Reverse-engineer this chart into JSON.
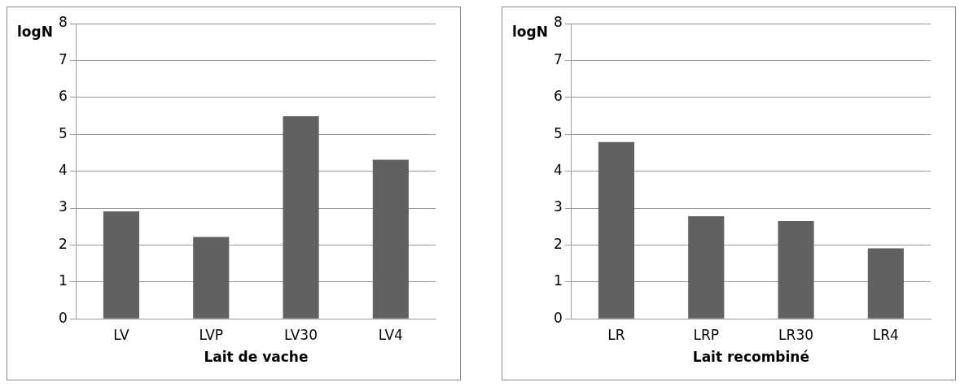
{
  "chart_data": [
    {
      "type": "bar",
      "xlabel": "Lait de vache",
      "ylabel": "logN",
      "categories": [
        "LV",
        "LVP",
        "LV30",
        "LV4"
      ],
      "values": [
        2.91,
        2.22,
        5.49,
        4.31
      ],
      "color": "#616161",
      "ylim": [
        0,
        8
      ],
      "yticks": [
        0,
        1,
        2,
        3,
        4,
        5,
        6,
        7,
        8
      ],
      "grid": "y",
      "legend": false
    },
    {
      "type": "bar",
      "xlabel": "Lait recombiné",
      "ylabel": "logN",
      "categories": [
        "LR",
        "LRP",
        "LR30",
        "LR4"
      ],
      "values": [
        4.79,
        2.78,
        2.65,
        1.91
      ],
      "color": "#616161",
      "ylim": [
        0,
        8
      ],
      "yticks": [
        0,
        1,
        2,
        3,
        4,
        5,
        6,
        7,
        8
      ],
      "grid": "y",
      "legend": false
    }
  ]
}
